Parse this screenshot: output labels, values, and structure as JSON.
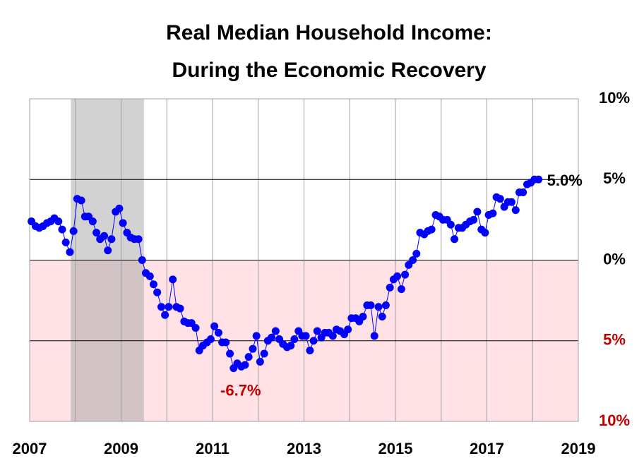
{
  "chart_data": {
    "type": "line",
    "title": [
      "Real Median Household Income:",
      "During the Economic Recovery"
    ],
    "x": [
      2007.04,
      2007.13,
      2007.21,
      2007.29,
      2007.38,
      2007.46,
      2007.54,
      2007.63,
      2007.71,
      2007.79,
      2007.88,
      2007.96,
      2008.04,
      2008.13,
      2008.21,
      2008.29,
      2008.38,
      2008.46,
      2008.54,
      2008.63,
      2008.71,
      2008.79,
      2008.88,
      2008.96,
      2009.04,
      2009.13,
      2009.21,
      2009.29,
      2009.38,
      2009.46,
      2009.54,
      2009.63,
      2009.71,
      2009.79,
      2009.88,
      2009.96,
      2010.04,
      2010.13,
      2010.21,
      2010.29,
      2010.38,
      2010.46,
      2010.54,
      2010.63,
      2010.71,
      2010.79,
      2010.88,
      2010.96,
      2011.04,
      2011.13,
      2011.21,
      2011.29,
      2011.38,
      2011.46,
      2011.54,
      2011.63,
      2011.71,
      2011.79,
      2011.88,
      2011.96,
      2012.04,
      2012.13,
      2012.21,
      2012.29,
      2012.38,
      2012.46,
      2012.54,
      2012.63,
      2012.71,
      2012.79,
      2012.88,
      2012.96,
      2013.04,
      2013.13,
      2013.21,
      2013.29,
      2013.38,
      2013.46,
      2013.54,
      2013.63,
      2013.71,
      2013.79,
      2013.88,
      2013.96,
      2014.04,
      2014.13,
      2014.21,
      2014.29,
      2014.38,
      2014.46,
      2014.54,
      2014.63,
      2014.71,
      2014.79,
      2014.88,
      2014.96,
      2015.04,
      2015.13,
      2015.21,
      2015.29,
      2015.38,
      2015.46,
      2015.54,
      2015.63,
      2015.71,
      2015.79,
      2015.88,
      2015.96,
      2016.04,
      2016.13,
      2016.21,
      2016.29,
      2016.38,
      2016.46,
      2016.54,
      2016.63,
      2016.71,
      2016.79,
      2016.88,
      2016.96,
      2017.04,
      2017.13,
      2017.21,
      2017.29,
      2017.38,
      2017.46,
      2017.54,
      2017.63,
      2017.71,
      2017.79,
      2017.88,
      2017.96,
      2018.04,
      2018.13
    ],
    "values": [
      2.4,
      2.1,
      2.0,
      2.1,
      2.3,
      2.4,
      2.6,
      2.4,
      1.9,
      1.1,
      0.5,
      1.8,
      3.8,
      3.7,
      2.7,
      2.7,
      2.4,
      1.7,
      1.3,
      1.5,
      0.6,
      1.3,
      3.0,
      3.2,
      2.3,
      1.7,
      1.4,
      1.3,
      1.3,
      0.0,
      -0.8,
      -1.0,
      -1.5,
      -2.0,
      -2.9,
      -3.4,
      -2.9,
      -1.2,
      -2.9,
      -3.0,
      -3.8,
      -3.9,
      -3.9,
      -4.2,
      -5.6,
      -5.3,
      -5.1,
      -4.9,
      -4.1,
      -4.5,
      -5.1,
      -5.1,
      -5.8,
      -6.7,
      -6.4,
      -6.6,
      -6.5,
      -6.0,
      -5.5,
      -4.7,
      -6.3,
      -5.8,
      -5.0,
      -4.8,
      -4.4,
      -4.9,
      -5.2,
      -5.4,
      -5.3,
      -4.9,
      -4.4,
      -4.7,
      -4.7,
      -5.6,
      -5.0,
      -4.4,
      -4.8,
      -4.5,
      -4.5,
      -4.7,
      -4.3,
      -4.4,
      -4.6,
      -4.3,
      -3.6,
      -3.6,
      -3.8,
      -3.5,
      -2.8,
      -2.8,
      -4.7,
      -2.9,
      -3.5,
      -2.8,
      -1.7,
      -1.2,
      -1.0,
      -1.8,
      -0.9,
      -0.3,
      0.0,
      0.4,
      1.7,
      1.6,
      1.8,
      1.9,
      2.8,
      2.7,
      2.5,
      2.5,
      2.2,
      1.3,
      2.0,
      2.0,
      2.2,
      2.4,
      2.5,
      3.0,
      1.9,
      1.7,
      2.8,
      2.9,
      3.9,
      3.8,
      3.3,
      3.6,
      3.6,
      3.1,
      4.2,
      4.2,
      4.7,
      4.8,
      5.0,
      5.0
    ],
    "color": "#0000ff",
    "annotations": [
      {
        "text": "-6.7%",
        "index": 53
      },
      {
        "text": "5.0%",
        "index": 133
      }
    ],
    "xlim": [
      2007,
      2019
    ],
    "xticks": [
      2007,
      2009,
      2011,
      2013,
      2015,
      2017,
      2019
    ],
    "x_minor_ticks": [
      2008,
      2010,
      2012,
      2014,
      2016,
      2018
    ],
    "ylim": [
      -10,
      10
    ],
    "yticks": [
      {
        "value": -10,
        "label": "10%"
      },
      {
        "value": -5,
        "label": "5%"
      },
      {
        "value": 0,
        "label": "0%"
      },
      {
        "value": 5,
        "label": "5%"
      },
      {
        "value": 10,
        "label": "10%"
      }
    ],
    "grid": true,
    "recession_shade": [
      2007.9,
      2009.5
    ],
    "negative_fill": "#ffe1e6",
    "negative_color": "#c00000"
  }
}
